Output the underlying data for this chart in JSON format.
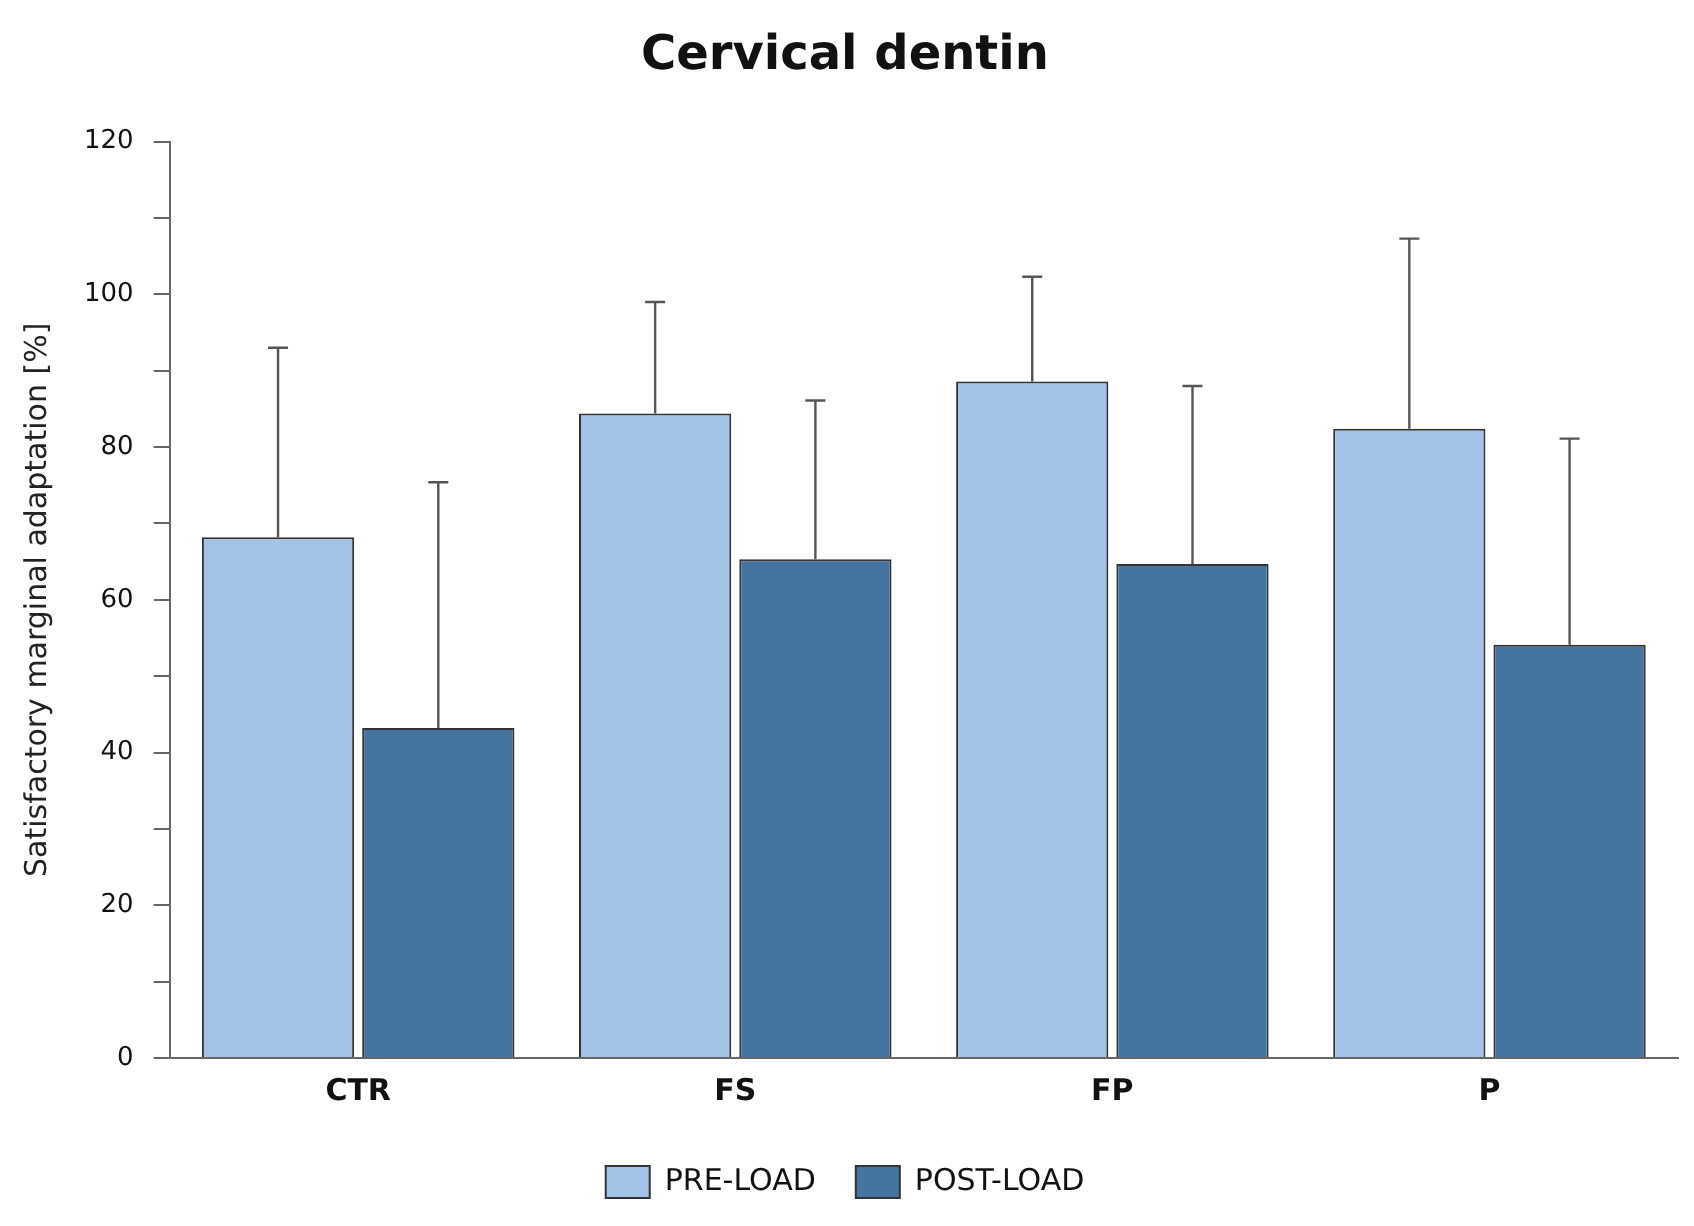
{
  "chart_data": {
    "type": "bar",
    "title": "Cervical dentin",
    "ylabel": "Satisfactory marginal adaptation [%]",
    "categories": [
      "CTR",
      "FS",
      "FP",
      "P"
    ],
    "series": [
      {
        "name": "PRE-LOAD",
        "color": "#a3c3e6",
        "values": [
          68.2,
          84.4,
          88.6,
          82.4
        ],
        "errors": [
          [
            68.2,
            93.0
          ],
          [
            84.4,
            99.0
          ],
          [
            88.6,
            102.3
          ],
          [
            82.4,
            107.3
          ]
        ]
      },
      {
        "name": "POST-LOAD",
        "color": "#4674a0",
        "values": [
          43.2,
          65.3,
          64.7,
          54.1
        ],
        "errors": [
          [
            43.2,
            75.4
          ],
          [
            65.3,
            86.1
          ],
          [
            64.7,
            88.0
          ],
          [
            54.1,
            81.1
          ]
        ]
      }
    ],
    "ylim": [
      0,
      120
    ],
    "yticks": [
      0,
      {
        "value": 10,
        "label": null
      },
      20,
      {
        "value": 30,
        "label": null
      },
      40,
      {
        "value": 50,
        "label": null
      },
      60,
      {
        "value": 70,
        "label": null
      },
      80,
      {
        "value": 90,
        "label": null
      },
      100,
      {
        "value": 110,
        "label": null
      },
      120
    ],
    "grid": false,
    "legend": "bottom"
  }
}
